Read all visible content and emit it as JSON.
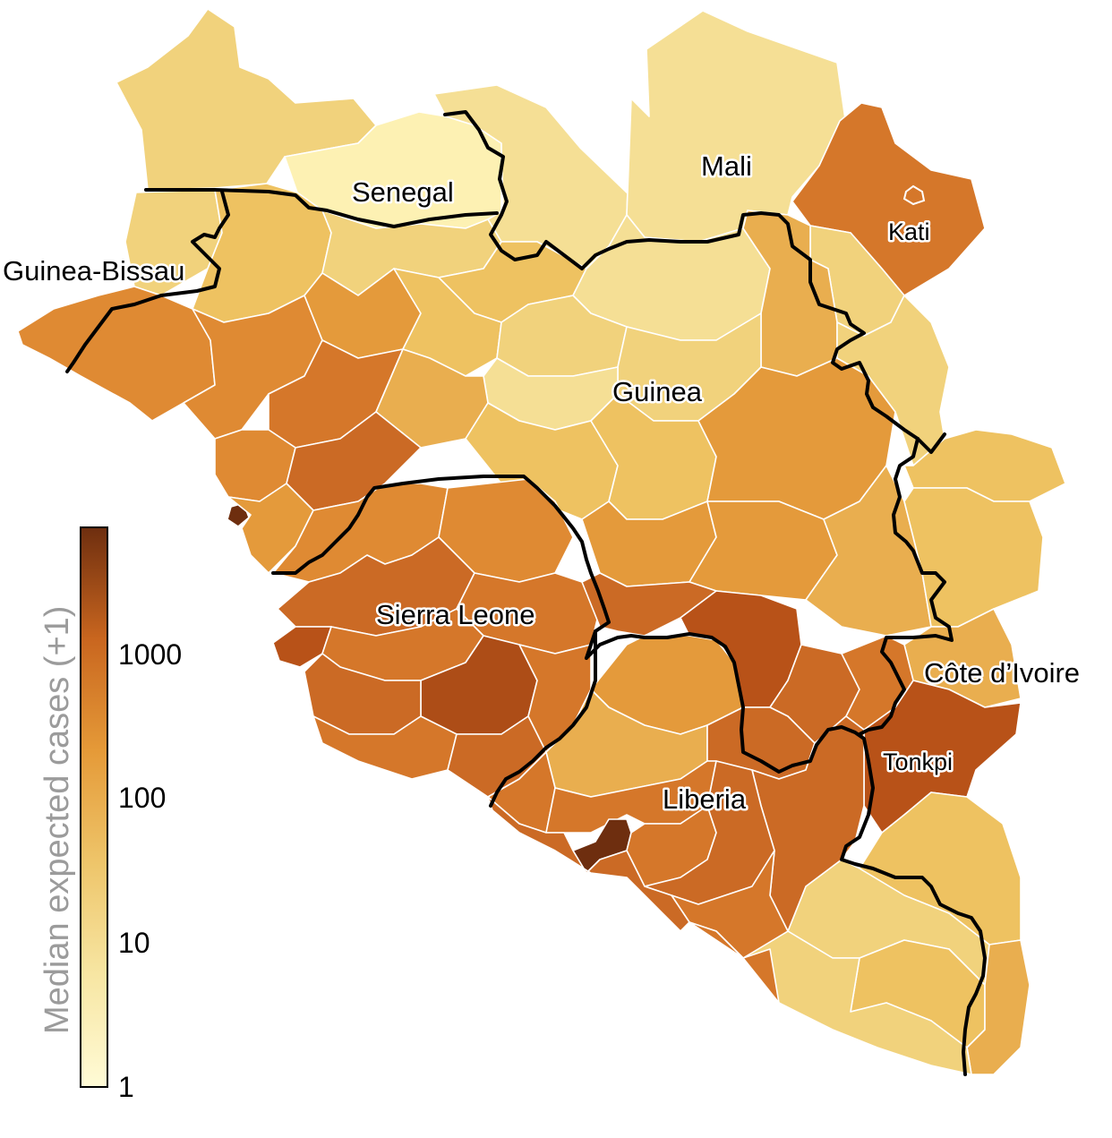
{
  "map": {
    "country_labels": {
      "senegal": "Senegal",
      "mali": "Mali",
      "guinea_bissau": "Guinea-Bissau",
      "guinea": "Guinea",
      "sierra_leone": "Sierra Leone",
      "liberia": "Liberia",
      "cote_divoire": "Côte d’Ivoire"
    },
    "district_labels": {
      "kati": "Kati",
      "tonkpi": "Tonkpi"
    }
  },
  "legend": {
    "title": "Median expected cases (+1)",
    "scale": "log",
    "ticks": [
      "1",
      "10",
      "100",
      "1000"
    ],
    "color_low": "#fffbd6",
    "color_mid": "#e59a38",
    "color_high": "#6e2e0f"
  },
  "colors": {
    "level_1": "#fdf1b3",
    "level_2": "#f5df95",
    "level_3": "#f1d27c",
    "level_4": "#eec261",
    "level_5": "#e9ae4f",
    "level_6": "#e49a3b",
    "level_7": "#df8a33",
    "level_8": "#d5772a",
    "level_9": "#cb6a25",
    "level_10": "#b85218",
    "level_11": "#ad4d17",
    "level_12": "#6e2e0f",
    "border": "#000000"
  }
}
